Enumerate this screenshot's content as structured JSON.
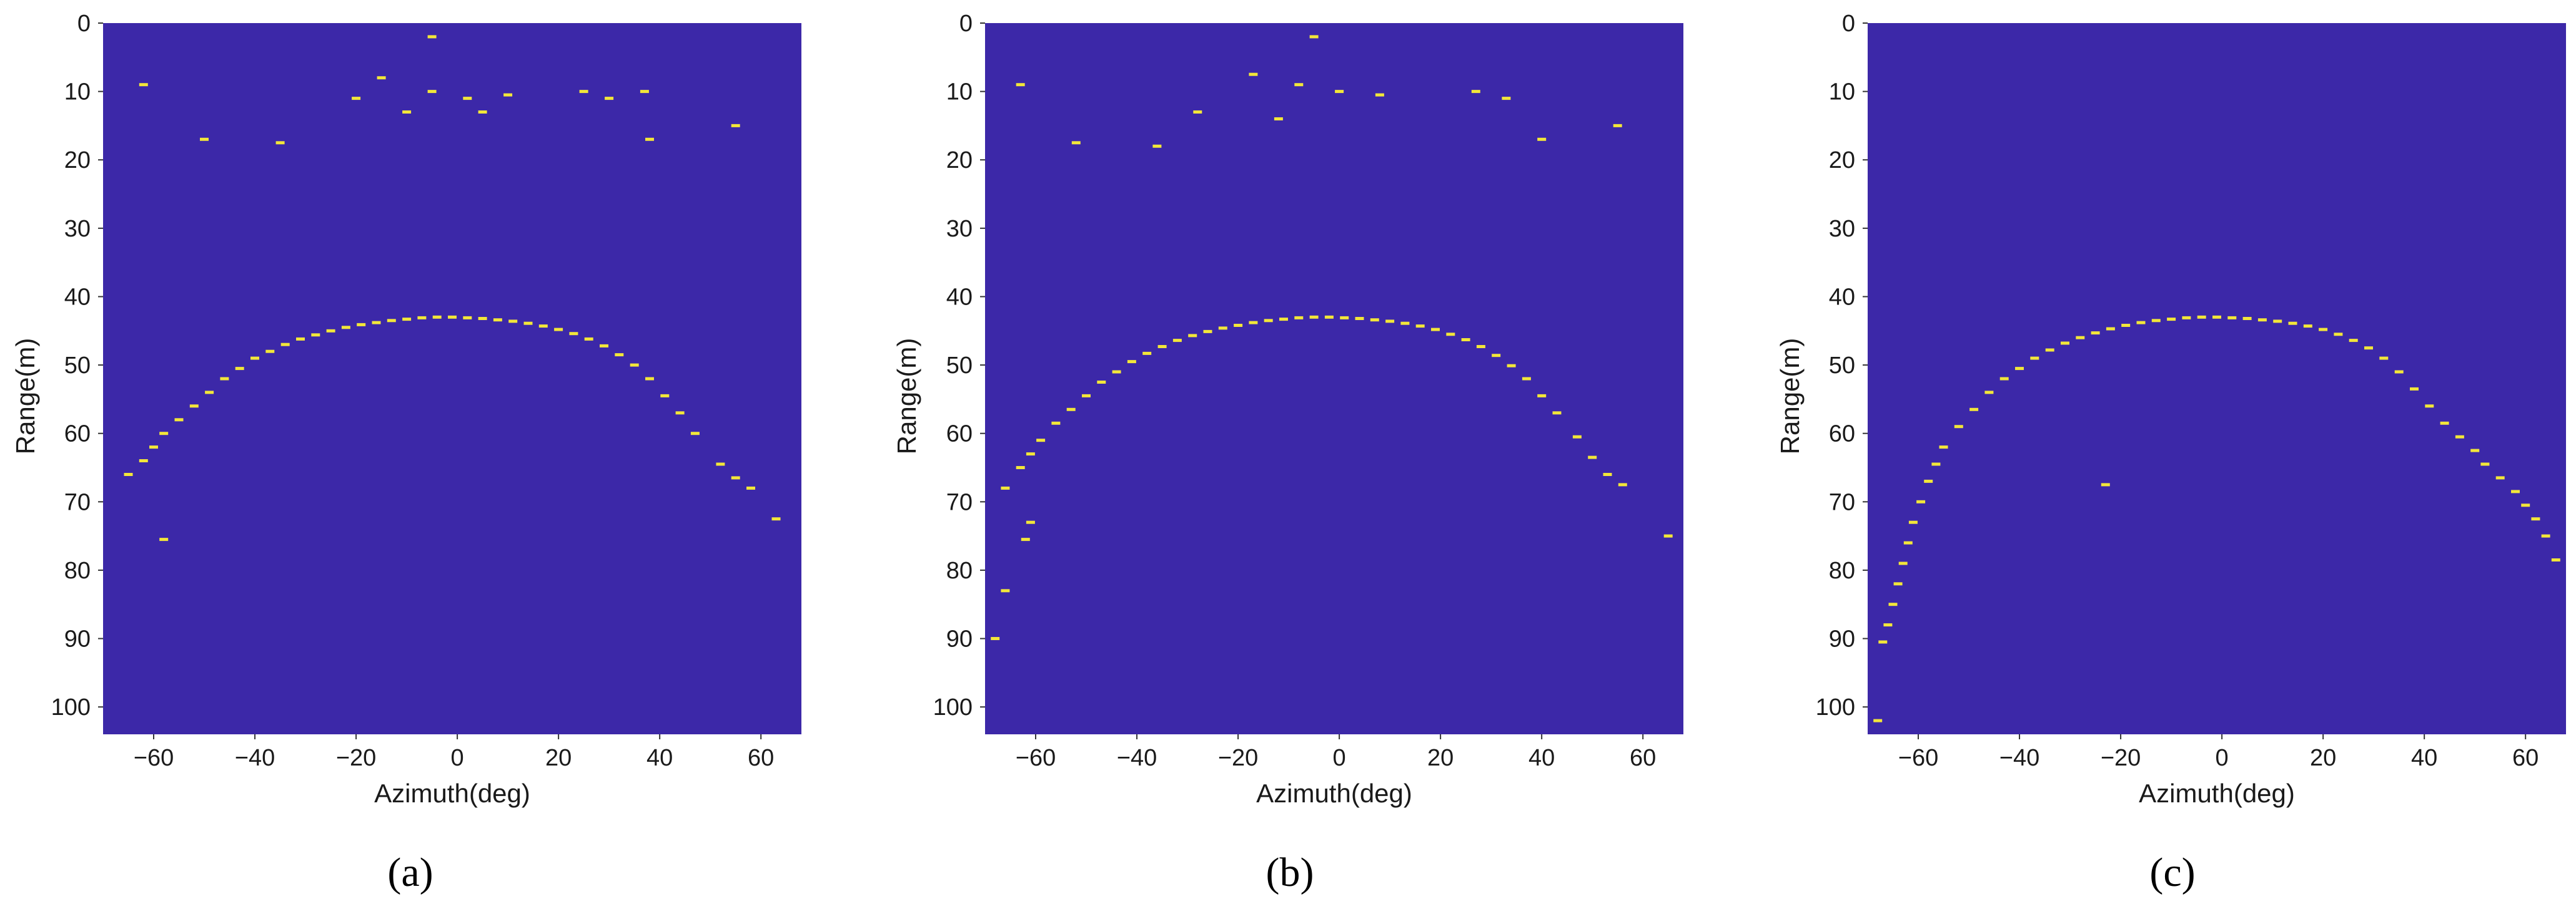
{
  "figure": {
    "background_color": "#3c28a8",
    "return_color": "#f2e63a",
    "panel_captions": [
      "(a)",
      "(b)",
      "(c)"
    ]
  },
  "chart_data": [
    {
      "type": "heatmap",
      "panel": "(a)",
      "xlabel": "Azimuth(deg)",
      "ylabel": "Range(m)",
      "xlim": [
        -70,
        68
      ],
      "ylim": [
        0,
        104
      ],
      "y_inverted": true,
      "x_ticks": [
        -60,
        -40,
        -20,
        0,
        20,
        40,
        60
      ],
      "y_ticks": [
        0,
        10,
        20,
        30,
        40,
        50,
        60,
        70,
        80,
        90,
        100
      ],
      "grid": false,
      "legend": "none",
      "background_color": "#3c28a8",
      "highlight_color": "#f2e63a",
      "points": [
        [
          -65,
          66
        ],
        [
          -62,
          64
        ],
        [
          -60,
          62
        ],
        [
          -58,
          60
        ],
        [
          -55,
          58
        ],
        [
          -52,
          56
        ],
        [
          -49,
          54
        ],
        [
          -46,
          52
        ],
        [
          -43,
          50.5
        ],
        [
          -40,
          49
        ],
        [
          -37,
          48
        ],
        [
          -34,
          47
        ],
        [
          -31,
          46.2
        ],
        [
          -28,
          45.6
        ],
        [
          -25,
          45
        ],
        [
          -22,
          44.5
        ],
        [
          -19,
          44.1
        ],
        [
          -16,
          43.8
        ],
        [
          -13,
          43.5
        ],
        [
          -10,
          43.3
        ],
        [
          -7,
          43.1
        ],
        [
          -4,
          43
        ],
        [
          -1,
          43
        ],
        [
          2,
          43.1
        ],
        [
          5,
          43.2
        ],
        [
          8,
          43.4
        ],
        [
          11,
          43.6
        ],
        [
          14,
          43.9
        ],
        [
          17,
          44.3
        ],
        [
          20,
          44.8
        ],
        [
          23,
          45.4
        ],
        [
          26,
          46.2
        ],
        [
          29,
          47.2
        ],
        [
          32,
          48.5
        ],
        [
          35,
          50
        ],
        [
          38,
          52
        ],
        [
          41,
          54.5
        ],
        [
          44,
          57
        ],
        [
          47,
          60
        ],
        [
          52,
          64.5
        ],
        [
          55,
          66.5
        ],
        [
          58,
          68
        ],
        [
          -5,
          2
        ],
        [
          -62,
          9
        ],
        [
          -15,
          8
        ],
        [
          -5,
          10
        ],
        [
          2,
          11
        ],
        [
          10,
          10.5
        ],
        [
          25,
          10
        ],
        [
          30,
          11
        ],
        [
          37,
          10
        ],
        [
          -35,
          17.5
        ],
        [
          -50,
          17
        ],
        [
          55,
          15
        ],
        [
          38,
          17
        ],
        [
          -10,
          13
        ],
        [
          5,
          13
        ],
        [
          -58,
          75.5
        ],
        [
          63,
          72.5
        ],
        [
          -20,
          11
        ]
      ]
    },
    {
      "type": "heatmap",
      "panel": "(b)",
      "xlabel": "Azimuth(deg)",
      "ylabel": "Range(m)",
      "xlim": [
        -70,
        68
      ],
      "ylim": [
        0,
        104
      ],
      "y_inverted": true,
      "x_ticks": [
        -60,
        -40,
        -20,
        0,
        20,
        40,
        60
      ],
      "y_ticks": [
        0,
        10,
        20,
        30,
        40,
        50,
        60,
        70,
        80,
        90,
        100
      ],
      "grid": false,
      "legend": "none",
      "background_color": "#3c28a8",
      "highlight_color": "#f2e63a",
      "points": [
        [
          -66,
          68
        ],
        [
          -63,
          65
        ],
        [
          -61,
          63
        ],
        [
          -59,
          61
        ],
        [
          -56,
          58.5
        ],
        [
          -53,
          56.5
        ],
        [
          -50,
          54.5
        ],
        [
          -47,
          52.5
        ],
        [
          -44,
          51
        ],
        [
          -41,
          49.5
        ],
        [
          -38,
          48.3
        ],
        [
          -35,
          47.3
        ],
        [
          -32,
          46.4
        ],
        [
          -29,
          45.7
        ],
        [
          -26,
          45.1
        ],
        [
          -23,
          44.6
        ],
        [
          -20,
          44.2
        ],
        [
          -17,
          43.8
        ],
        [
          -14,
          43.5
        ],
        [
          -11,
          43.3
        ],
        [
          -8,
          43.1
        ],
        [
          -5,
          43
        ],
        [
          -2,
          43
        ],
        [
          1,
          43.1
        ],
        [
          4,
          43.2
        ],
        [
          7,
          43.4
        ],
        [
          10,
          43.6
        ],
        [
          13,
          43.9
        ],
        [
          16,
          44.3
        ],
        [
          19,
          44.8
        ],
        [
          22,
          45.5
        ],
        [
          25,
          46.3
        ],
        [
          28,
          47.3
        ],
        [
          31,
          48.6
        ],
        [
          34,
          50.1
        ],
        [
          37,
          52
        ],
        [
          40,
          54.5
        ],
        [
          43,
          57
        ],
        [
          47,
          60.5
        ],
        [
          50,
          63.5
        ],
        [
          53,
          66
        ],
        [
          56,
          67.5
        ],
        [
          -5,
          2
        ],
        [
          -63,
          9
        ],
        [
          -17,
          7.5
        ],
        [
          -8,
          9
        ],
        [
          0,
          10
        ],
        [
          8,
          10.5
        ],
        [
          27,
          10
        ],
        [
          33,
          11
        ],
        [
          -28,
          13
        ],
        [
          -36,
          18
        ],
        [
          -52,
          17.5
        ],
        [
          55,
          15
        ],
        [
          40,
          17
        ],
        [
          -12,
          14
        ],
        [
          -62,
          75.5
        ],
        [
          -61,
          73
        ],
        [
          -66,
          83
        ],
        [
          -68,
          90
        ],
        [
          65,
          75
        ]
      ]
    },
    {
      "type": "heatmap",
      "panel": "(c)",
      "xlabel": "Azimuth(deg)",
      "ylabel": "Range(m)",
      "xlim": [
        -70,
        68
      ],
      "ylim": [
        0,
        104
      ],
      "y_inverted": true,
      "x_ticks": [
        -60,
        -40,
        -20,
        0,
        20,
        40,
        60
      ],
      "y_ticks": [
        0,
        10,
        20,
        30,
        40,
        50,
        60,
        70,
        80,
        90,
        100
      ],
      "grid": false,
      "legend": "none",
      "background_color": "#3c28a8",
      "highlight_color": "#f2e63a",
      "points": [
        [
          -67,
          90.5
        ],
        [
          -66,
          88
        ],
        [
          -65,
          85
        ],
        [
          -64,
          82
        ],
        [
          -63,
          79
        ],
        [
          -62,
          76
        ],
        [
          -61,
          73
        ],
        [
          -59.5,
          70
        ],
        [
          -58,
          67
        ],
        [
          -56.5,
          64.5
        ],
        [
          -55,
          62
        ],
        [
          -52,
          59
        ],
        [
          -49,
          56.5
        ],
        [
          -46,
          54
        ],
        [
          -43,
          52
        ],
        [
          -40,
          50.5
        ],
        [
          -37,
          49
        ],
        [
          -34,
          47.8
        ],
        [
          -31,
          46.8
        ],
        [
          -28,
          46
        ],
        [
          -25,
          45.3
        ],
        [
          -22,
          44.7
        ],
        [
          -19,
          44.2
        ],
        [
          -16,
          43.8
        ],
        [
          -13,
          43.5
        ],
        [
          -10,
          43.3
        ],
        [
          -7,
          43.1
        ],
        [
          -4,
          43
        ],
        [
          -1,
          43
        ],
        [
          2,
          43.1
        ],
        [
          5,
          43.2
        ],
        [
          8,
          43.4
        ],
        [
          11,
          43.6
        ],
        [
          14,
          43.9
        ],
        [
          17,
          44.3
        ],
        [
          20,
          44.8
        ],
        [
          23,
          45.5
        ],
        [
          26,
          46.4
        ],
        [
          29,
          47.5
        ],
        [
          32,
          49
        ],
        [
          35,
          51
        ],
        [
          38,
          53.5
        ],
        [
          41,
          56
        ],
        [
          44,
          58.5
        ],
        [
          47,
          60.5
        ],
        [
          50,
          62.5
        ],
        [
          52,
          64.5
        ],
        [
          55,
          66.5
        ],
        [
          58,
          68.5
        ],
        [
          60,
          70.5
        ],
        [
          62,
          72.5
        ],
        [
          64,
          75
        ],
        [
          66,
          78.5
        ],
        [
          -68,
          102
        ],
        [
          -23,
          67.5
        ]
      ]
    }
  ]
}
